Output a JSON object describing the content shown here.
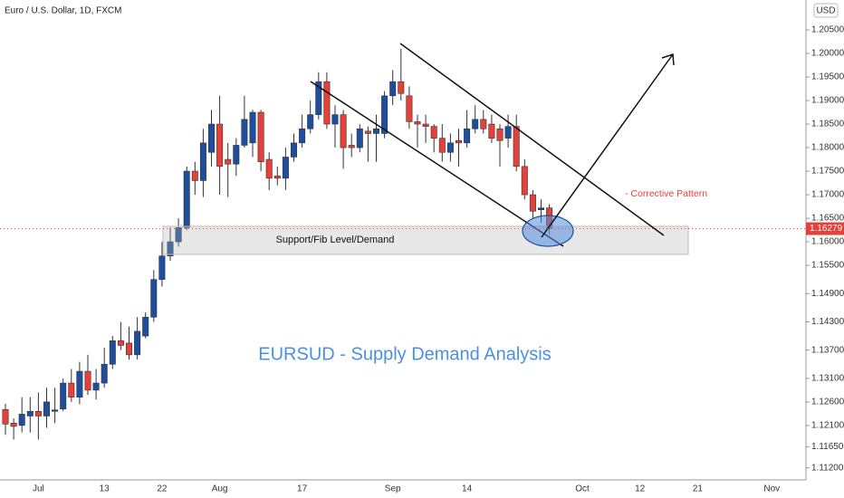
{
  "chart_data": {
    "type": "candlestick",
    "header": "Euro / U.S. Dollar, 1D, FXCM",
    "currency": "USD",
    "title": "EURSUD - Supply Demand Analysis",
    "annotations": [
      "Support/Fib Level/Demand",
      "- Corrective Pattern"
    ],
    "last_price": 1.16279,
    "up_color": "#1f4e9e",
    "down_color": "#e5413a",
    "categories": [
      null,
      null,
      null,
      null,
      "Jul",
      null,
      null,
      null,
      null,
      null,
      null,
      null,
      "13",
      null,
      null,
      null,
      null,
      null,
      null,
      "22",
      null,
      null,
      null,
      null,
      null,
      null,
      "Aug",
      null,
      null,
      null,
      null,
      null,
      null,
      null,
      null,
      null,
      "17",
      null,
      null,
      null,
      null,
      null,
      null,
      null,
      null,
      null,
      null,
      "Sep",
      null,
      null,
      null,
      null,
      null,
      null,
      null,
      null,
      "14",
      null,
      null,
      null,
      null,
      null,
      null,
      null,
      null,
      null,
      null,
      null,
      null,
      null,
      "Oct",
      null,
      null,
      null,
      null,
      null,
      null,
      "12",
      null,
      null,
      null,
      null,
      null,
      null,
      "21",
      null,
      null,
      null,
      null,
      null,
      null,
      null,
      null,
      "Nov"
    ],
    "open": [
      1.1244,
      1.1215,
      1.121,
      1.123,
      1.124,
      1.123,
      1.124,
      1.1245,
      1.13,
      1.127,
      1.1325,
      1.1285,
      1.13,
      1.134,
      1.139,
      1.1385,
      1.136,
      1.14,
      1.144,
      1.152,
      1.157,
      1.16,
      1.163,
      1.175,
      1.173,
      1.179,
      1.185,
      1.1775,
      1.1765,
      1.1805,
      1.181,
      1.1875,
      1.1775,
      1.174,
      1.1735,
      1.178,
      1.181,
      1.184,
      1.187,
      1.194,
      1.185,
      1.187,
      1.1805,
      1.18,
      1.1835,
      1.183,
      1.183,
      1.191,
      1.194,
      1.191,
      1.1855,
      1.185,
      1.1845,
      1.182,
      1.179,
      1.1815,
      1.181,
      1.184,
      1.186,
      1.185,
      1.184,
      1.182,
      1.1845,
      1.176,
      1.17,
      1.1668,
      1.1672,
      null,
      null,
      null,
      null,
      null,
      null,
      null,
      null,
      null,
      null,
      null,
      null,
      null,
      null,
      null,
      null,
      null,
      null,
      null,
      null,
      null,
      null,
      null,
      null,
      null,
      null,
      null
    ],
    "high": [
      1.1256,
      1.1225,
      1.127,
      1.127,
      1.128,
      1.129,
      1.129,
      1.131,
      1.133,
      1.1345,
      1.136,
      1.133,
      1.1375,
      1.14,
      1.143,
      1.142,
      1.144,
      1.145,
      1.154,
      1.16,
      1.163,
      1.165,
      1.176,
      1.177,
      1.184,
      1.188,
      1.191,
      1.181,
      1.182,
      1.191,
      1.188,
      1.188,
      1.179,
      1.176,
      1.18,
      1.183,
      1.187,
      1.19,
      1.196,
      1.196,
      1.189,
      1.188,
      1.183,
      1.185,
      1.1845,
      1.187,
      1.192,
      1.1965,
      1.201,
      1.193,
      1.187,
      1.187,
      1.185,
      1.185,
      1.183,
      1.184,
      1.188,
      1.189,
      1.188,
      1.187,
      1.185,
      1.187,
      1.187,
      1.1775,
      1.171,
      1.169,
      1.168,
      null,
      null,
      null,
      null,
      null,
      null,
      null,
      null,
      null,
      null,
      null,
      null,
      null,
      null,
      null,
      null,
      null,
      null,
      null,
      null,
      null,
      null,
      null,
      null,
      null,
      null,
      null
    ],
    "low": [
      1.119,
      1.118,
      1.1195,
      1.1195,
      1.118,
      1.1205,
      1.1215,
      1.124,
      1.126,
      1.1255,
      1.1275,
      1.1265,
      1.129,
      1.133,
      1.137,
      1.135,
      1.135,
      1.1395,
      1.143,
      1.1505,
      1.156,
      1.159,
      1.1625,
      1.17,
      1.1695,
      1.176,
      1.17,
      1.1695,
      1.174,
      1.18,
      1.178,
      1.175,
      1.171,
      1.172,
      1.171,
      1.177,
      1.18,
      1.183,
      1.186,
      1.184,
      1.18,
      1.1755,
      1.178,
      1.179,
      1.177,
      1.177,
      1.182,
      1.189,
      1.19,
      1.184,
      1.18,
      1.181,
      1.179,
      1.177,
      1.177,
      1.176,
      1.18,
      1.183,
      1.183,
      1.181,
      1.176,
      1.18,
      1.175,
      1.169,
      1.165,
      1.164,
      1.1615,
      null,
      null,
      null,
      null,
      null,
      null,
      null,
      null,
      null,
      null,
      null,
      null,
      null,
      null,
      null,
      null,
      null,
      null,
      null,
      null,
      null,
      null,
      null,
      null,
      null,
      null,
      null
    ],
    "close": [
      1.1213,
      1.1208,
      1.1234,
      1.124,
      1.123,
      1.126,
      1.1243,
      1.13,
      1.127,
      1.1325,
      1.1285,
      1.13,
      1.134,
      1.139,
      1.138,
      1.136,
      1.141,
      1.144,
      1.152,
      1.157,
      1.16,
      1.163,
      1.175,
      1.173,
      1.181,
      1.185,
      1.176,
      1.1765,
      1.1805,
      1.186,
      1.1875,
      1.177,
      1.1735,
      1.1735,
      1.178,
      1.181,
      1.184,
      1.187,
      1.194,
      1.185,
      1.187,
      1.18,
      1.18,
      1.184,
      1.183,
      1.184,
      1.191,
      1.194,
      1.1915,
      1.1855,
      1.185,
      1.1845,
      1.182,
      1.179,
      1.181,
      1.181,
      1.184,
      1.186,
      1.184,
      1.182,
      1.1815,
      1.1845,
      1.176,
      1.17,
      1.1665,
      1.1672,
      1.1628,
      null,
      null,
      null,
      null,
      null,
      null,
      null,
      null,
      null,
      null,
      null,
      null,
      null,
      null,
      null,
      null,
      null,
      null,
      null,
      null,
      null,
      null,
      null,
      null,
      null,
      null,
      null
    ],
    "ylim": [
      1.10944,
      1.21135
    ],
    "yticks": [
      {
        "value": 1.205,
        "label": "1.20500"
      },
      {
        "value": 1.2,
        "label": "1.20000"
      },
      {
        "value": 1.195,
        "label": "1.19500"
      },
      {
        "value": 1.19,
        "label": "1.19000"
      },
      {
        "value": 1.185,
        "label": "1.18500"
      },
      {
        "value": 1.18,
        "label": "1.18000"
      },
      {
        "value": 1.175,
        "label": "1.17500"
      },
      {
        "value": 1.17,
        "label": "1.17000"
      },
      {
        "value": 1.165,
        "label": "1.16500"
      },
      {
        "value": 1.16,
        "label": "1.16000"
      },
      {
        "value": 1.155,
        "label": "1.15500"
      },
      {
        "value": 1.149,
        "label": "1.14900"
      },
      {
        "value": 1.143,
        "label": "1.14300"
      },
      {
        "value": 1.137,
        "label": "1.13700"
      },
      {
        "value": 1.131,
        "label": "1.13100"
      },
      {
        "value": 1.126,
        "label": "1.12600"
      },
      {
        "value": 1.121,
        "label": "1.12100"
      },
      {
        "value": 1.1165,
        "label": "1.11650"
      },
      {
        "value": 1.112,
        "label": "1.11200"
      }
    ]
  }
}
